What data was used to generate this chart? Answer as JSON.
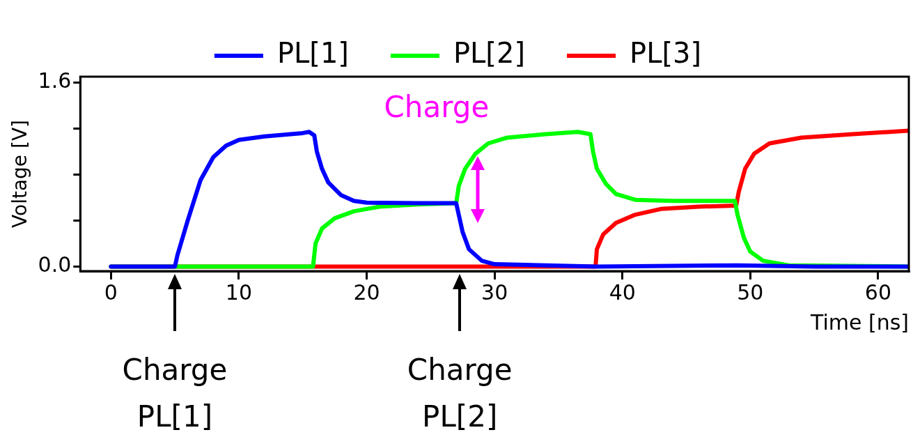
{
  "chart_data": {
    "type": "line",
    "xlabel": "Time [ns]",
    "ylabel": "Voltage [V]",
    "xlim": [
      -2.4,
      62.4
    ],
    "xticks": [
      0,
      10,
      20,
      30,
      40,
      50,
      60
    ],
    "ylim": [
      -0.04,
      1.65
    ],
    "yticks": [
      {
        "value": 0,
        "label": "0.0"
      },
      {
        "value": 0.4,
        "label": null
      },
      {
        "value": 0.8,
        "label": null
      },
      {
        "value": 1.2,
        "label": null
      },
      {
        "value": 1.6,
        "label": "1.6"
      }
    ],
    "grid": false,
    "legend": "top",
    "marker": "none",
    "line_style": "solid",
    "series": [
      {
        "name": "PL[1]",
        "color": "#0000ff",
        "x": [
          0,
          5,
          5.2,
          6,
          7,
          8,
          9,
          10,
          12,
          15,
          15.5,
          15.9,
          16.1,
          16.5,
          17,
          18,
          19,
          20,
          24,
          27,
          27.1,
          27.5,
          28,
          29,
          30,
          38,
          49,
          55,
          62.4
        ],
        "values": [
          0,
          0,
          0.1,
          0.4,
          0.75,
          0.95,
          1.05,
          1.1,
          1.13,
          1.16,
          1.17,
          1.14,
          1.0,
          0.85,
          0.73,
          0.62,
          0.57,
          0.555,
          0.55,
          0.55,
          0.5,
          0.3,
          0.15,
          0.05,
          0.02,
          0.0,
          0.01,
          0,
          0
        ]
      },
      {
        "name": "PL[2]",
        "color": "#00ff00",
        "x": [
          0,
          15.8,
          16,
          16.5,
          17.5,
          19,
          21,
          24,
          27,
          27.2,
          27.7,
          28.5,
          29.5,
          31,
          34,
          36.5,
          37.5,
          37.7,
          38,
          38.7,
          39.5,
          41,
          44,
          48.8,
          49,
          49.5,
          50,
          51,
          53,
          62.4
        ],
        "values": [
          0,
          0,
          0.2,
          0.33,
          0.42,
          0.48,
          0.52,
          0.54,
          0.55,
          0.7,
          0.85,
          0.98,
          1.07,
          1.12,
          1.15,
          1.17,
          1.15,
          1.0,
          0.85,
          0.72,
          0.63,
          0.58,
          0.57,
          0.57,
          0.45,
          0.25,
          0.13,
          0.05,
          0.01,
          0
        ]
      },
      {
        "name": "PL[3]",
        "color": "#ff0000",
        "x": [
          0,
          37.9,
          38,
          38.5,
          39.5,
          41,
          43,
          46,
          48.9,
          49.1,
          49.6,
          50.3,
          51.5,
          54,
          58,
          62.4
        ],
        "values": [
          0,
          0,
          0.15,
          0.28,
          0.38,
          0.45,
          0.5,
          0.52,
          0.53,
          0.65,
          0.85,
          0.98,
          1.07,
          1.12,
          1.15,
          1.18
        ]
      }
    ],
    "annotations": [
      "Charge PL[1]",
      "Charge PL[2]",
      "Charge"
    ]
  }
}
